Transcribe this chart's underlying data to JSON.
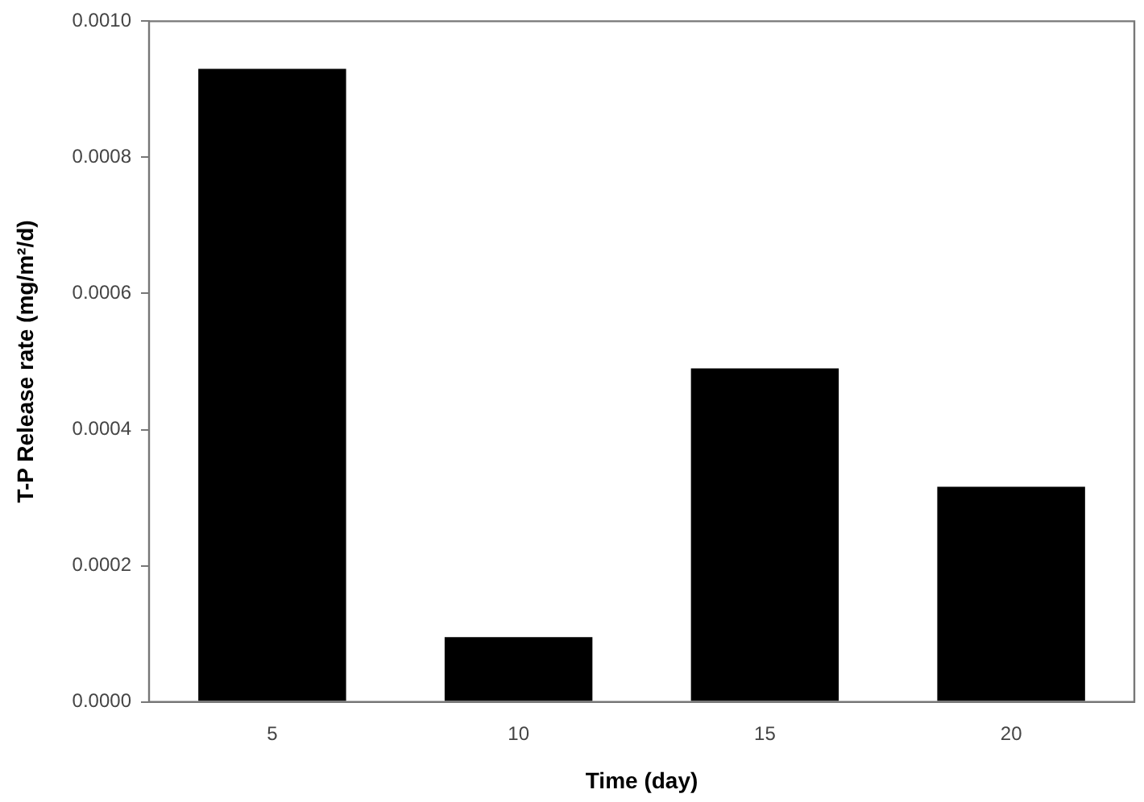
{
  "chart_data": {
    "type": "bar",
    "xlabel": "Time (day)",
    "ylabel": "T-P Release rate (mg/m²/d)",
    "categories": [
      "5",
      "10",
      "15",
      "20"
    ],
    "values": [
      0.00093,
      9.5e-05,
      0.00049,
      0.000316
    ],
    "color": "#000000",
    "ylim": [
      0,
      0.001
    ],
    "yticks": [
      {
        "value": 0,
        "label": "0.0000"
      },
      {
        "value": 0.0002,
        "label": "0.0002"
      },
      {
        "value": 0.0004,
        "label": "0.0004"
      },
      {
        "value": 0.0006,
        "label": "0.0006"
      },
      {
        "value": 0.0008,
        "label": "0.0008"
      },
      {
        "value": 0.001,
        "label": "0.0010"
      }
    ],
    "grid": false,
    "legend": false
  }
}
